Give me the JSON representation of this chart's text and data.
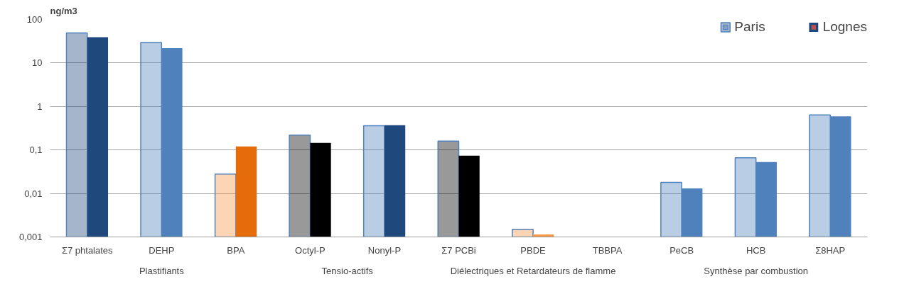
{
  "chart_data": {
    "type": "bar",
    "ylabel": "ng/m3",
    "categories": [
      "Σ7 phtalates",
      "DEHP",
      "BPA",
      "Octyl-P",
      "Nonyl-P",
      "Σ7 PCBi",
      "PBDE",
      "TBBPA",
      "PeCB",
      "HCB",
      "Σ8HAP"
    ],
    "series": [
      {
        "name": "Paris",
        "color": "#4f81bd",
        "colors": [
          "#1f497d",
          "#4f81bd",
          "#f79646",
          "#000000",
          "#4f81bd",
          "#000000",
          "#f79646",
          "#4f81bd",
          "#4f81bd",
          "#4f81bd",
          "#4f81bd"
        ],
        "values": [
          49,
          29.5,
          0.028,
          0.22,
          0.36,
          0.16,
          0.0015,
          null,
          0.018,
          0.066,
          0.64
        ]
      },
      {
        "name": "Lognes",
        "color": "#c0504d",
        "colors": [
          "#1f497d",
          "#4f81bd",
          "#e46c0a",
          "#000000",
          "#1f497d",
          "#000000",
          "#f79646",
          "#4f81bd",
          "#4f81bd",
          "#4f81bd",
          "#4f81bd"
        ],
        "values": [
          39,
          22,
          0.12,
          0.145,
          0.37,
          0.074,
          0.00114,
          null,
          0.013,
          0.053,
          0.59
        ]
      }
    ],
    "log": "y",
    "ylim": [
      0.001,
      100
    ],
    "yticks": [
      {
        "value": 0.001,
        "label": "0,001"
      },
      {
        "value": 0.01,
        "label": "0,01"
      },
      {
        "value": 0.1,
        "label": "0,1"
      },
      1,
      10,
      100
    ],
    "grid": "y",
    "legend": "top right",
    "annotations": [
      "Plastifiants",
      "Tensio-actifs",
      "Diélectriques et Retardateurs de flamme",
      "Synthèse par combustion"
    ]
  }
}
